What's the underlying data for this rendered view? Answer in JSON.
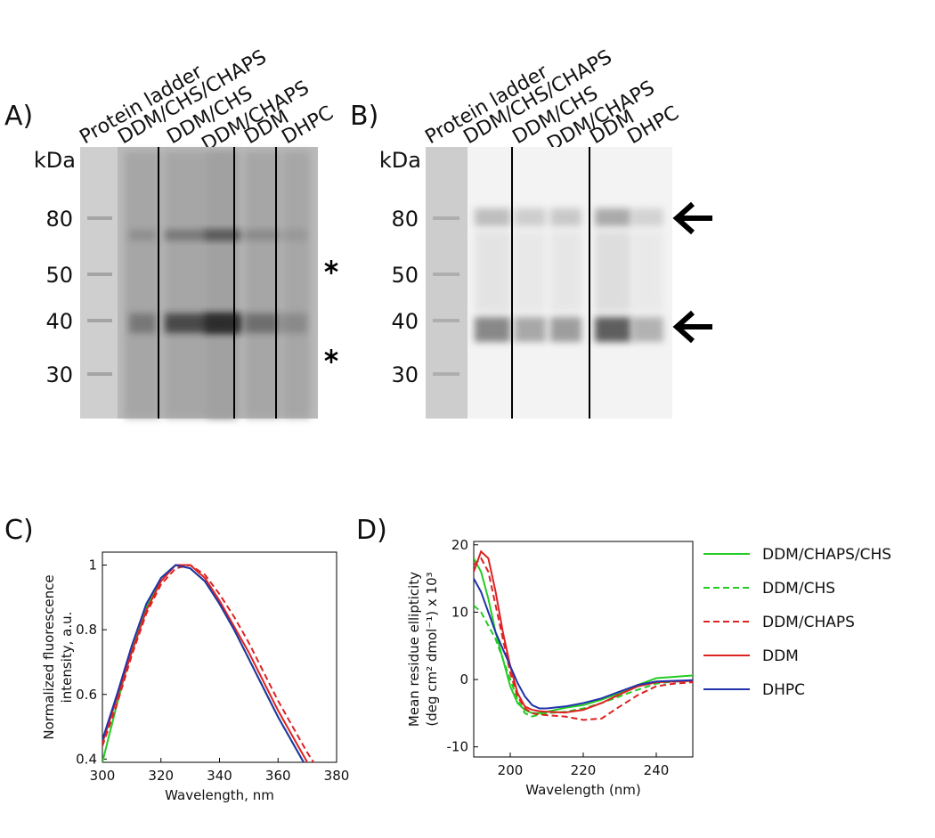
{
  "panels": [
    {
      "label": "A)",
      "unit": "kDa",
      "lanes": [
        "Protein ladder",
        "DDM/CHS/CHAPS",
        "DDM/CHS",
        "DDM/CHAPS",
        "DDM",
        "DHPC"
      ],
      "markers": [
        "80",
        "50",
        "40",
        "30"
      ]
    },
    {
      "label": "B)",
      "unit": "kDa",
      "lanes": [
        "Protein ladder",
        "DDM/CHS/CHAPS",
        "DDM/CHS",
        "DDM/CHAPS",
        "DDM",
        "DHPC"
      ],
      "markers": [
        "80",
        "50",
        "40",
        "30"
      ]
    }
  ],
  "chart_data": [
    {
      "type": "line",
      "panel_label": "C)",
      "xlabel": "Wavelength, nm",
      "ylabel": [
        "Normalized fluorescence",
        "intensity, a.u."
      ],
      "x": [
        300,
        305,
        310,
        315,
        320,
        325,
        330,
        335,
        340,
        345,
        350,
        355,
        360,
        365,
        370,
        375
      ],
      "xlim": [
        300,
        380
      ],
      "xticks": [
        300,
        320,
        340,
        360,
        380
      ],
      "ylim": [
        0.39,
        1.04
      ],
      "yticks": [
        0.4,
        0.6,
        0.8,
        1
      ],
      "series": [
        {
          "color": "#22cc22",
          "dash": false,
          "values": [
            0.39,
            0.57,
            0.74,
            0.87,
            0.96,
            1.0,
            0.99,
            0.95,
            0.88,
            0.8,
            0.71,
            0.62,
            0.53,
            0.45,
            0.37,
            null
          ]
        },
        {
          "color": "#22cc22",
          "dash": true,
          "values": [
            0.45,
            0.59,
            0.74,
            0.87,
            0.96,
            1.0,
            0.99,
            0.95,
            0.88,
            0.8,
            0.71,
            0.62,
            0.53,
            0.45,
            0.37,
            null
          ]
        },
        {
          "color": "#dd2222",
          "dash": true,
          "values": [
            0.44,
            0.57,
            0.72,
            0.85,
            0.94,
            0.99,
            1.0,
            0.97,
            0.91,
            0.84,
            0.76,
            0.67,
            0.58,
            0.5,
            0.42,
            0.35
          ]
        },
        {
          "color": "#dd2222",
          "dash": false,
          "values": [
            0.45,
            0.59,
            0.73,
            0.86,
            0.95,
            1.0,
            1.0,
            0.96,
            0.89,
            0.81,
            0.73,
            0.64,
            0.55,
            0.47,
            0.39,
            0.33
          ]
        },
        {
          "color": "#2233aa",
          "dash": false,
          "values": [
            0.46,
            0.6,
            0.75,
            0.88,
            0.96,
            1.0,
            0.99,
            0.95,
            0.88,
            0.8,
            0.71,
            0.62,
            0.53,
            0.45,
            0.37,
            null
          ]
        }
      ]
    },
    {
      "type": "line",
      "panel_label": "D)",
      "xlabel": "Wavelength (nm)",
      "ylabel": [
        "Mean residue ellipticity",
        "(deg cm² dmol⁻¹) x 10³"
      ],
      "x": [
        190,
        192,
        194,
        196,
        198,
        200,
        202,
        204,
        206,
        208,
        210,
        215,
        220,
        225,
        230,
        235,
        240,
        245,
        250
      ],
      "xlim": [
        190,
        250
      ],
      "xticks": [
        200,
        220,
        240
      ],
      "ylim": [
        -11.5,
        20.5
      ],
      "yticks": [
        -10,
        0,
        10,
        20
      ],
      "legend": "right",
      "series": [
        {
          "name": "DDM/CHAPS/CHS",
          "color": "#22cc22",
          "dash": false,
          "values": [
            18,
            16,
            12,
            7,
            3,
            -1,
            -3.5,
            -4.5,
            -5,
            -5,
            -4.8,
            -4.2,
            -3.8,
            -3,
            -2,
            -0.8,
            0.2,
            0.4,
            0.6
          ]
        },
        {
          "name": "DDM/CHS",
          "color": "#22cc22",
          "dash": true,
          "values": [
            11,
            10,
            8,
            6,
            3,
            0,
            -3,
            -5,
            -5.5,
            -5.2,
            -5,
            -4.8,
            -4.3,
            -3.5,
            -2.5,
            -1.5,
            -0.6,
            -0.3,
            -0.2
          ]
        },
        {
          "name": "DDM/CHAPS",
          "color": "#dd2222",
          "dash": true,
          "values": [
            17,
            18,
            16,
            11,
            6,
            1,
            -2.5,
            -4.3,
            -5,
            -5.2,
            -5.3,
            -5.5,
            -6,
            -5.8,
            -4,
            -2.3,
            -1,
            -0.6,
            -0.4
          ]
        },
        {
          "name": "DDM",
          "color": "#dd2222",
          "dash": false,
          "values": [
            16,
            19,
            18,
            13,
            7,
            2,
            -2,
            -4,
            -4.5,
            -4.7,
            -4.8,
            -4.9,
            -4.5,
            -3.5,
            -2.2,
            -1,
            -0.4,
            -0.3,
            -0.2
          ]
        },
        {
          "name": "DHPC",
          "color": "#2233aa",
          "dash": false,
          "values": [
            15,
            13,
            10,
            7,
            4.5,
            2,
            -0.5,
            -2.5,
            -3.8,
            -4.3,
            -4.3,
            -4,
            -3.5,
            -2.8,
            -1.8,
            -0.8,
            -0.3,
            -0.2,
            -0.1
          ]
        }
      ]
    }
  ]
}
